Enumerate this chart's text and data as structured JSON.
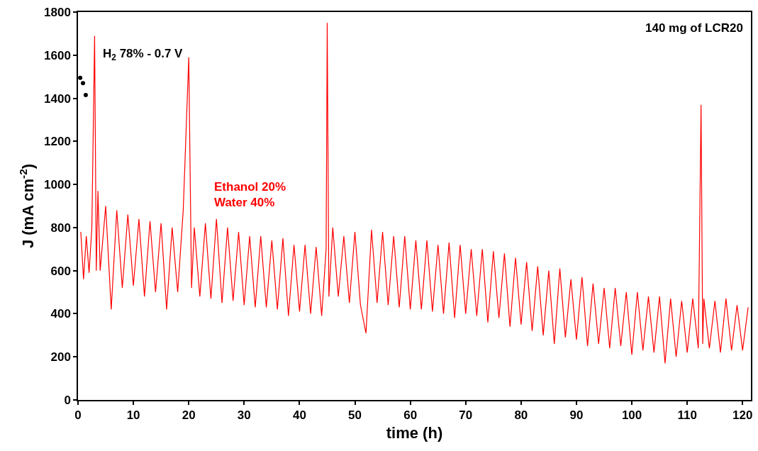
{
  "chart_data": {
    "type": "line",
    "xlabel": "time (h)",
    "ylabel": "J (mA cm$^{-2}$)",
    "xlim": [
      0,
      121.5
    ],
    "xticks": [
      0,
      10,
      20,
      30,
      40,
      50,
      60,
      70,
      80,
      90,
      100,
      110,
      120
    ],
    "ylim": [
      0,
      1800
    ],
    "yticks": [
      0,
      200,
      400,
      600,
      800,
      1000,
      1200,
      1400,
      1600,
      1800
    ],
    "annotations": [
      "H$_{2}$ 78% - 0.7 V",
      "Ethanol 20%\nWater 40%",
      "140 mg of LCR20"
    ],
    "series": [
      {
        "type": "scatter",
        "color": "#000000",
        "x": [
          0.4,
          0.9,
          1.4
        ],
        "values": [
          1495,
          1470,
          1415
        ]
      },
      {
        "color": "#ff0000",
        "x": [
          0.5,
          1,
          1.5,
          2,
          2.5,
          3,
          3.3,
          3.6,
          4,
          5,
          6,
          7,
          8,
          9,
          10,
          11,
          12,
          13,
          14,
          15,
          16,
          17,
          18,
          19,
          20,
          20.5,
          21,
          22,
          23,
          24,
          25,
          26,
          27,
          28,
          29,
          30,
          31,
          32,
          33,
          34,
          35,
          36,
          37,
          38,
          39,
          40,
          41,
          42,
          43,
          44,
          44.8,
          45,
          45.3,
          46,
          47,
          48,
          49,
          50,
          51,
          52,
          53,
          54,
          55,
          56,
          57,
          58,
          59,
          60,
          61,
          62,
          63,
          64,
          65,
          66,
          67,
          68,
          69,
          70,
          71,
          72,
          73,
          74,
          75,
          76,
          77,
          78,
          79,
          80,
          81,
          82,
          83,
          84,
          85,
          86,
          87,
          88,
          89,
          90,
          91,
          92,
          93,
          94,
          95,
          96,
          97,
          98,
          99,
          100,
          101,
          102,
          103,
          104,
          105,
          106,
          107,
          108,
          109,
          110,
          111,
          112,
          112.5,
          112.8,
          113,
          114,
          115,
          116,
          117,
          118,
          119,
          120,
          121
        ],
        "values": [
          780,
          560,
          760,
          590,
          800,
          1690,
          600,
          970,
          600,
          900,
          420,
          880,
          520,
          860,
          530,
          840,
          480,
          830,
          500,
          820,
          420,
          800,
          500,
          880,
          1590,
          520,
          800,
          480,
          820,
          470,
          840,
          450,
          800,
          460,
          780,
          440,
          760,
          430,
          760,
          430,
          740,
          420,
          750,
          390,
          720,
          410,
          720,
          400,
          710,
          390,
          700,
          1750,
          480,
          800,
          480,
          760,
          450,
          780,
          440,
          310,
          790,
          450,
          780,
          440,
          760,
          430,
          760,
          420,
          740,
          420,
          740,
          410,
          720,
          400,
          730,
          380,
          720,
          400,
          700,
          390,
          700,
          360,
          690,
          380,
          680,
          340,
          660,
          350,
          640,
          320,
          620,
          300,
          600,
          260,
          610,
          290,
          560,
          280,
          570,
          250,
          540,
          260,
          520,
          240,
          520,
          250,
          500,
          210,
          500,
          230,
          480,
          220,
          480,
          170,
          470,
          200,
          460,
          220,
          470,
          240,
          1370,
          260,
          470,
          240,
          460,
          220,
          470,
          230,
          440,
          230,
          430
        ]
      }
    ]
  }
}
